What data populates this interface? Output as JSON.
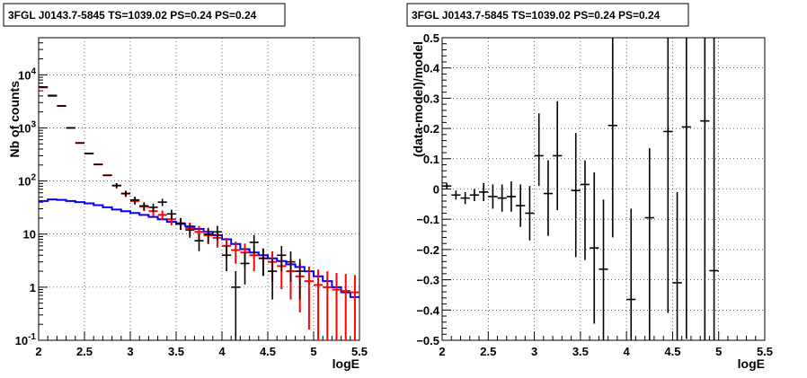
{
  "chart_data": [
    {
      "type": "line",
      "title": "3FGL J0143.7-5845 TS=1039.02 PS=0.24 PS=0.24",
      "xlabel": "logE",
      "ylabel": "Nb of counts",
      "xlim": [
        2,
        5.5
      ],
      "ylim": [
        0.1,
        50000
      ],
      "yscale": "log",
      "grid": true,
      "x_ticks": [
        "2",
        "2.5",
        "3",
        "3.5",
        "4",
        "4.5",
        "5",
        "5.5"
      ],
      "y_ticks": [
        "10^{-1}",
        "1",
        "10",
        "10^{2}",
        "10^{3}",
        "10^{4}"
      ],
      "series": [
        {
          "color": "#000000",
          "x": [
            2.05,
            2.15,
            2.25,
            2.35,
            2.45,
            2.55,
            2.65,
            2.75,
            2.85,
            2.95,
            3.05,
            3.15,
            3.25,
            3.35,
            3.45,
            3.55,
            3.65,
            3.75,
            3.85,
            3.95,
            4.05,
            4.15,
            4.25,
            4.35,
            4.45,
            4.55,
            4.65,
            4.75,
            4.85,
            4.95,
            5.05,
            5.15,
            5.25,
            5.35,
            5.45
          ],
          "y": [
            5900,
            4000,
            2600,
            1000,
            520,
            330,
            205,
            128,
            82,
            58,
            44,
            34,
            32,
            40,
            24,
            16,
            12,
            7.5,
            10,
            11,
            4,
            1,
            2.8,
            7,
            3.5,
            2,
            4,
            3,
            2,
            0.1,
            0.1,
            0.1,
            0.1,
            0.1,
            0.1
          ],
          "err_lo": [
            0,
            0,
            0,
            0,
            0,
            0,
            0,
            0,
            0,
            0,
            0,
            0,
            0,
            0,
            0,
            0,
            0,
            0,
            0,
            0,
            0,
            0.1,
            0,
            0,
            0,
            0,
            0,
            0,
            0,
            0,
            0,
            0,
            0,
            0,
            0
          ],
          "err_hi": [
            0,
            0,
            0,
            0,
            0,
            0,
            0,
            0,
            0,
            0,
            0,
            0,
            0,
            0,
            0,
            0,
            0,
            0,
            0,
            0,
            0,
            0,
            0,
            0,
            0,
            0,
            0,
            0,
            0,
            0,
            0,
            0,
            0,
            0,
            0
          ]
        },
        {
          "color": "#ff0000",
          "x": [
            2.05,
            2.15,
            2.25,
            2.35,
            2.45,
            2.55,
            2.65,
            2.75,
            2.85,
            2.95,
            3.05,
            3.15,
            3.25,
            3.35,
            3.45,
            3.55,
            3.65,
            3.75,
            3.85,
            3.95,
            4.05,
            4.15,
            4.25,
            4.35,
            4.45,
            4.55,
            4.65,
            4.75,
            4.85,
            4.95,
            5.05,
            5.15,
            5.25,
            5.35,
            5.45
          ],
          "y": [
            5800,
            4100,
            2600,
            1000,
            520,
            330,
            205,
            128,
            82,
            58,
            42,
            33,
            27,
            23,
            19,
            16,
            13,
            11,
            9.5,
            8.5,
            6,
            5,
            4.5,
            4,
            3.5,
            3,
            2.5,
            2,
            1.6,
            1.3,
            1.1,
            1,
            0.9,
            0.85,
            0.8
          ]
        },
        {
          "color": "#0000ff",
          "step": true,
          "x": [
            2.0,
            2.1,
            2.2,
            2.3,
            2.4,
            2.5,
            2.6,
            2.7,
            2.8,
            2.9,
            3.0,
            3.1,
            3.2,
            3.3,
            3.4,
            3.5,
            3.6,
            3.7,
            3.8,
            3.9,
            4.0,
            4.1,
            4.2,
            4.3,
            4.4,
            4.5,
            4.6,
            4.7,
            4.8,
            4.9,
            5.0,
            5.1,
            5.2,
            5.3,
            5.4
          ],
          "y": [
            42,
            45,
            44,
            42,
            40,
            38,
            35,
            32,
            29,
            27,
            25,
            23,
            21,
            19,
            17,
            15.5,
            14,
            12.5,
            11,
            9.5,
            8,
            6.5,
            5.2,
            4.5,
            4,
            3.5,
            3.1,
            2.7,
            2.4,
            2,
            1.6,
            1.3,
            1,
            0.8,
            0.65
          ]
        }
      ]
    },
    {
      "type": "scatter",
      "title": "3FGL J0143.7-5845 TS=1039.02 PS=0.24 PS=0.24",
      "xlabel": "logE",
      "ylabel": "(data-model)/model",
      "xlim": [
        2,
        5.5
      ],
      "ylim": [
        -0.5,
        0.5
      ],
      "grid": true,
      "x_ticks": [
        "2",
        "2.5",
        "3",
        "3.5",
        "4",
        "4.5",
        "5",
        "5.5"
      ],
      "y_ticks": [
        "-0.5",
        "-0.4",
        "-0.3",
        "-0.2",
        "-0.1",
        "0",
        "0.1",
        "0.2",
        "0.3",
        "0.4",
        "0.5"
      ],
      "points": {
        "x": [
          2.05,
          2.15,
          2.25,
          2.35,
          2.45,
          2.55,
          2.65,
          2.75,
          2.85,
          2.95,
          3.05,
          3.15,
          3.25,
          3.45,
          3.55,
          3.65,
          3.75,
          3.85,
          4.05,
          4.25,
          4.45,
          4.55,
          4.65,
          4.85,
          4.95
        ],
        "y": [
          0.01,
          -0.02,
          -0.03,
          -0.02,
          -0.01,
          -0.025,
          -0.03,
          -0.025,
          -0.055,
          -0.08,
          0.11,
          -0.015,
          0.11,
          -0.005,
          0.015,
          -0.195,
          -0.265,
          0.21,
          -0.365,
          -0.095,
          0.19,
          -0.31,
          0.205,
          0.225,
          -0.27
        ],
        "err_lo": [
          0.01,
          0.015,
          0.02,
          0.02,
          0.03,
          0.04,
          0.045,
          0.05,
          0.07,
          0.09,
          0.1,
          0.14,
          0.18,
          0.22,
          0.25,
          0.25,
          0.25,
          0.37,
          0.45,
          0.45,
          0.6,
          0.3,
          0.7,
          0.75,
          0.4
        ],
        "err_hi": [
          0.01,
          0.015,
          0.02,
          0.02,
          0.03,
          0.04,
          0.045,
          0.05,
          0.07,
          0.09,
          0.14,
          0.11,
          0.18,
          0.19,
          0.08,
          0.25,
          0.23,
          0.29,
          0.3,
          0.23,
          0.31,
          0.3,
          0.3,
          0.28,
          0.77
        ]
      }
    }
  ]
}
